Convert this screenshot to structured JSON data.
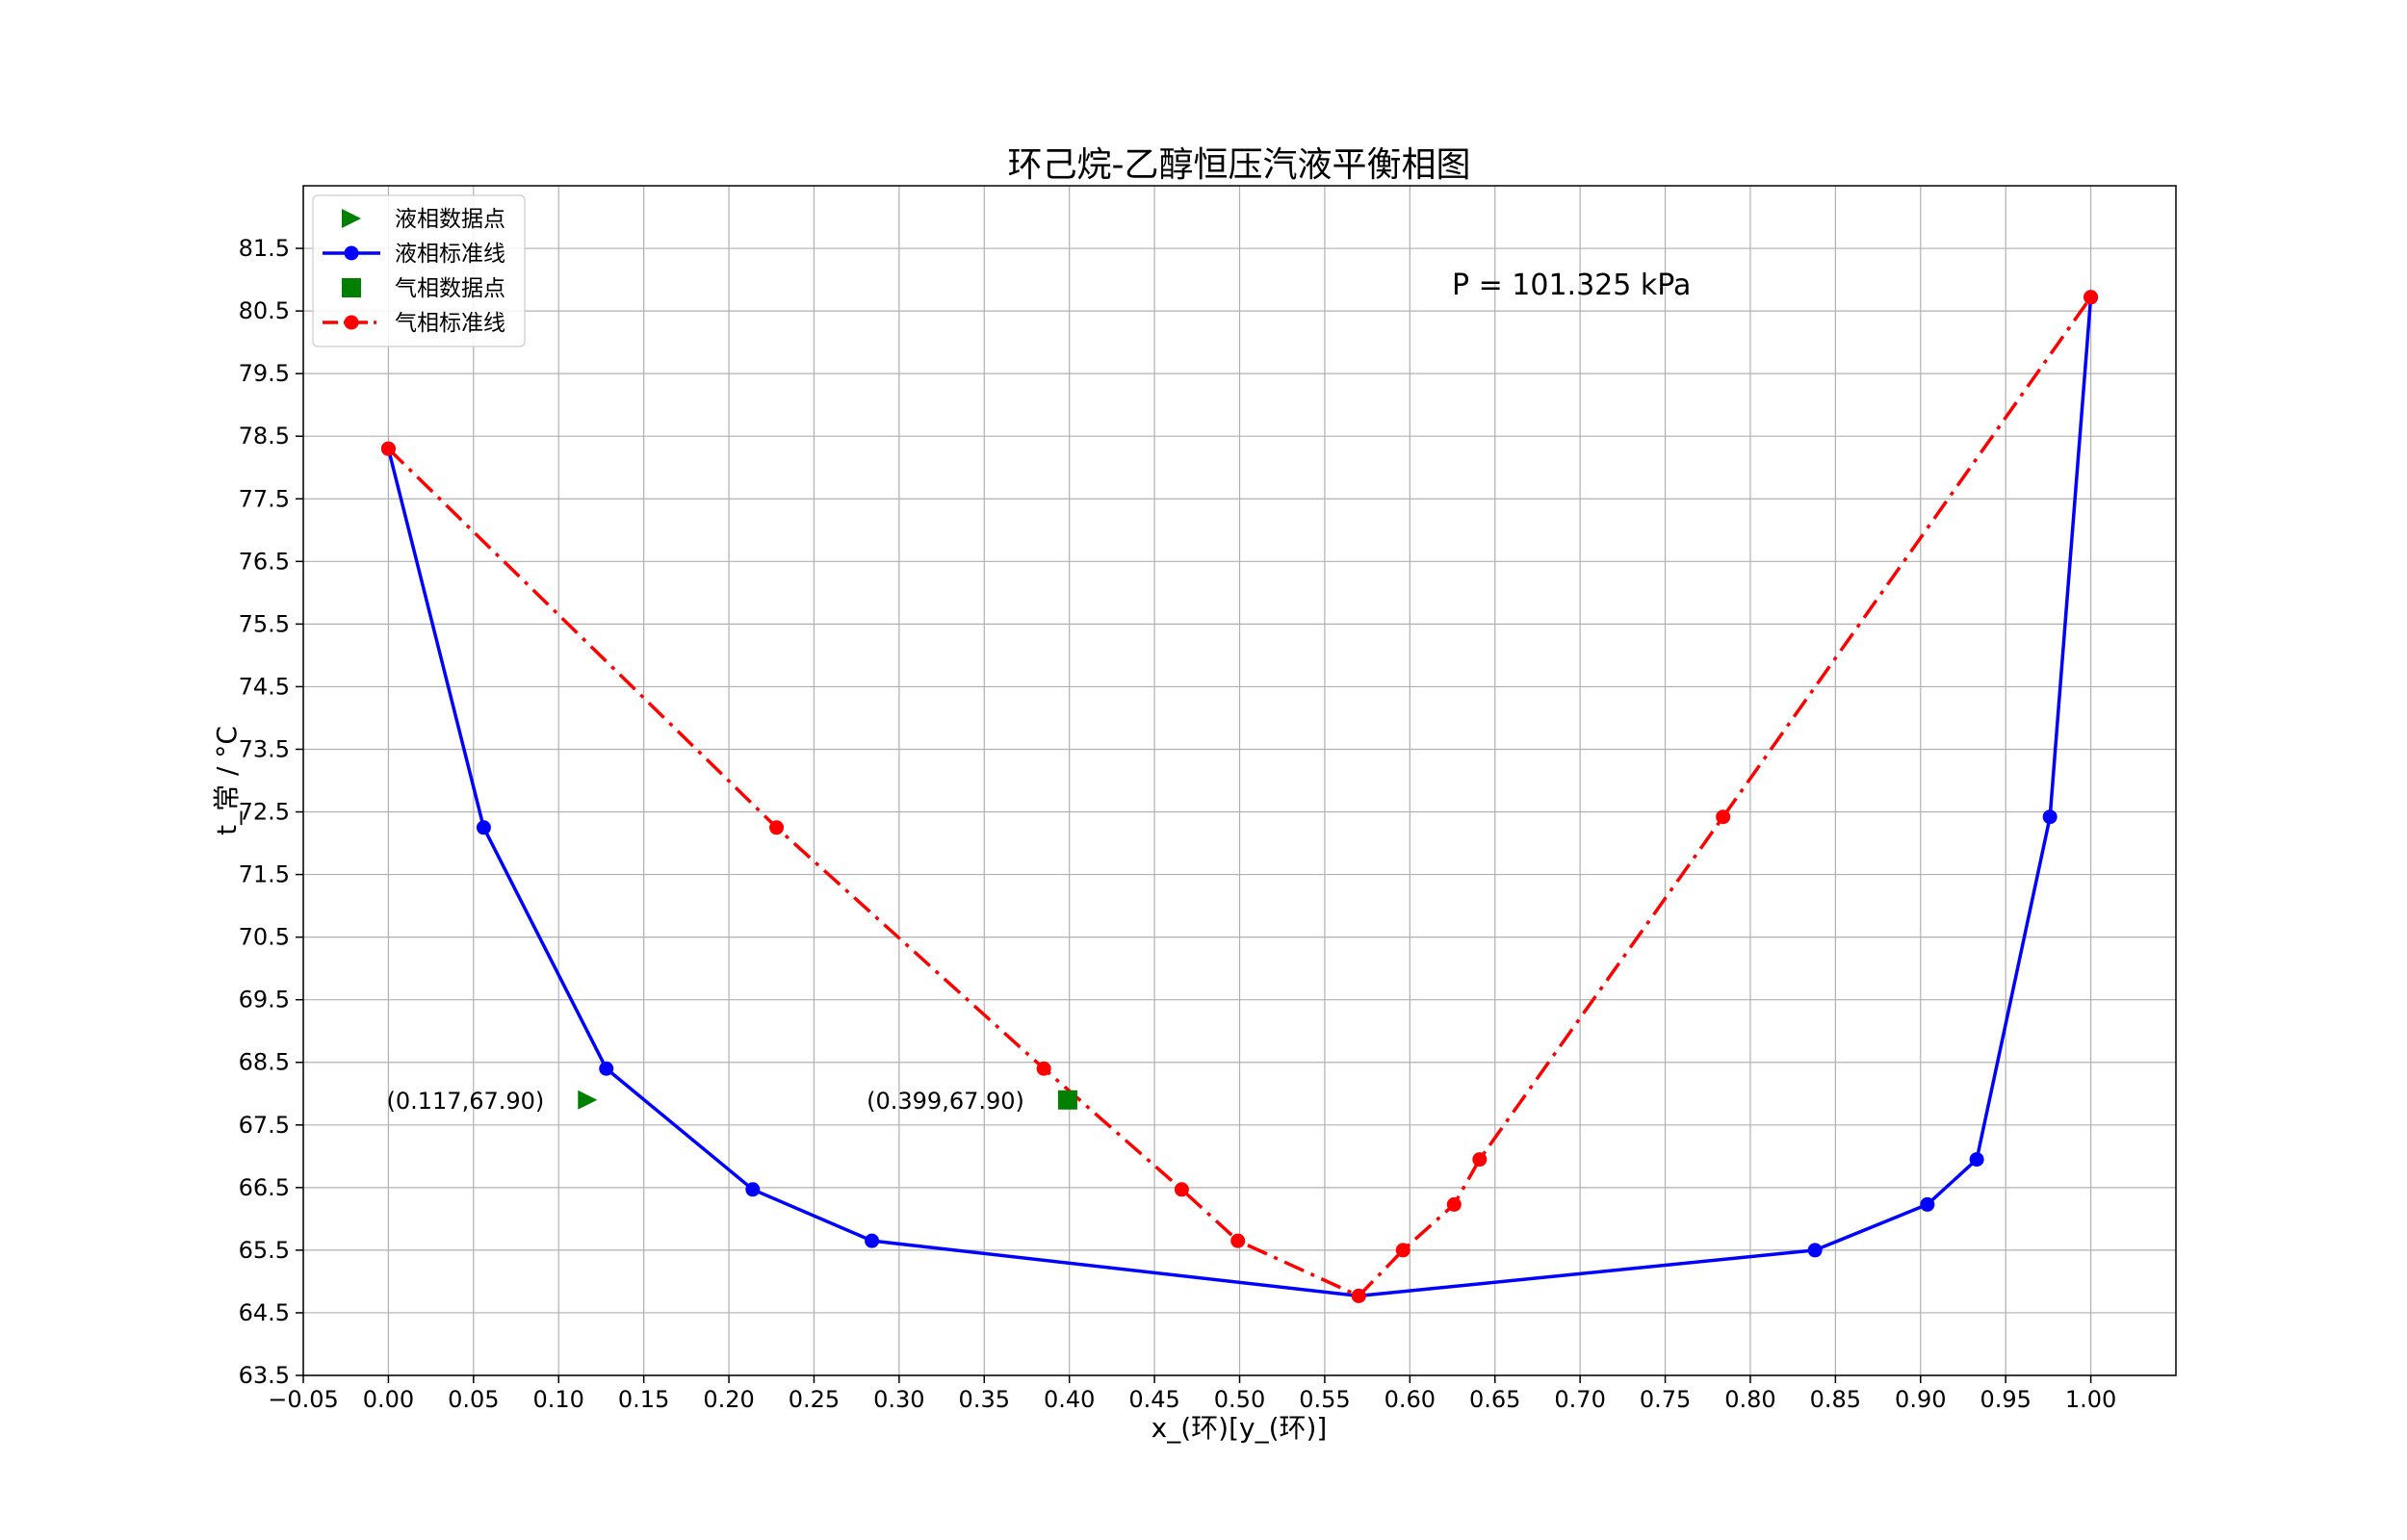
{
  "chart_data": {
    "type": "line",
    "title": "环己烷-乙醇恒压汽液平衡相图",
    "xlabel": "x_(环)[y_(环)]",
    "ylabel": "t_常 / °C",
    "xlim": [
      -0.05,
      1.05
    ],
    "ylim": [
      63.5,
      82.5
    ],
    "x_ticks": [
      -0.05,
      0.0,
      0.05,
      0.1,
      0.15,
      0.2,
      0.25,
      0.3,
      0.35,
      0.4,
      0.45,
      0.5,
      0.55,
      0.6,
      0.65,
      0.7,
      0.75,
      0.8,
      0.85,
      0.9,
      0.95,
      1.0
    ],
    "x_tick_labels": [
      "−0.05",
      "0.00",
      "0.05",
      "0.10",
      "0.15",
      "0.20",
      "0.25",
      "0.30",
      "0.35",
      "0.40",
      "0.45",
      "0.50",
      "0.55",
      "0.60",
      "0.65",
      "0.70",
      "0.75",
      "0.80",
      "0.85",
      "0.90",
      "0.95",
      "1.00"
    ],
    "y_ticks": [
      63.5,
      64.5,
      65.5,
      66.5,
      67.5,
      68.5,
      69.5,
      70.5,
      71.5,
      72.5,
      73.5,
      74.5,
      75.5,
      76.5,
      77.5,
      78.5,
      79.5,
      80.5,
      81.5
    ],
    "y_tick_labels": [
      "63.5",
      "64.5",
      "65.5",
      "66.5",
      "67.5",
      "68.5",
      "69.5",
      "70.5",
      "71.5",
      "72.5",
      "73.5",
      "74.5",
      "75.5",
      "76.5",
      "77.5",
      "78.5",
      "79.5",
      "80.5",
      "81.5"
    ],
    "grid": true,
    "legend_position": "top-left",
    "annotation_text": "P = 101.325 kPa",
    "series": [
      {
        "name": "液相数据点",
        "kind": "marker",
        "marker": "triangle-right",
        "color": "#008000",
        "points": [
          [
            0.117,
            67.9
          ]
        ],
        "label": "(0.117,67.90)"
      },
      {
        "name": "液相标准线",
        "kind": "line",
        "style": "solid",
        "marker": "circle",
        "color": "#0000ff",
        "points": [
          [
            0.0,
            78.3
          ],
          [
            0.056,
            72.25
          ],
          [
            0.128,
            68.4
          ],
          [
            0.214,
            66.47
          ],
          [
            0.284,
            65.65
          ],
          [
            0.57,
            64.77
          ],
          [
            0.838,
            65.5
          ],
          [
            0.904,
            66.23
          ],
          [
            0.933,
            66.95
          ],
          [
            0.976,
            72.42
          ],
          [
            1.0,
            80.72
          ]
        ]
      },
      {
        "name": "气相数据点",
        "kind": "marker",
        "marker": "square",
        "color": "#008000",
        "points": [
          [
            0.399,
            67.9
          ]
        ],
        "label": "(0.399,67.90)"
      },
      {
        "name": "气相标准线",
        "kind": "line",
        "style": "dashdot",
        "marker": "circle",
        "color": "#ff0000",
        "points": [
          [
            0.0,
            78.3
          ],
          [
            0.228,
            72.25
          ],
          [
            0.385,
            68.4
          ],
          [
            0.466,
            66.47
          ],
          [
            0.499,
            65.65
          ],
          [
            0.57,
            64.77
          ],
          [
            0.596,
            65.5
          ],
          [
            0.626,
            66.23
          ],
          [
            0.641,
            66.95
          ],
          [
            0.784,
            72.42
          ],
          [
            1.0,
            80.72
          ]
        ]
      }
    ]
  }
}
